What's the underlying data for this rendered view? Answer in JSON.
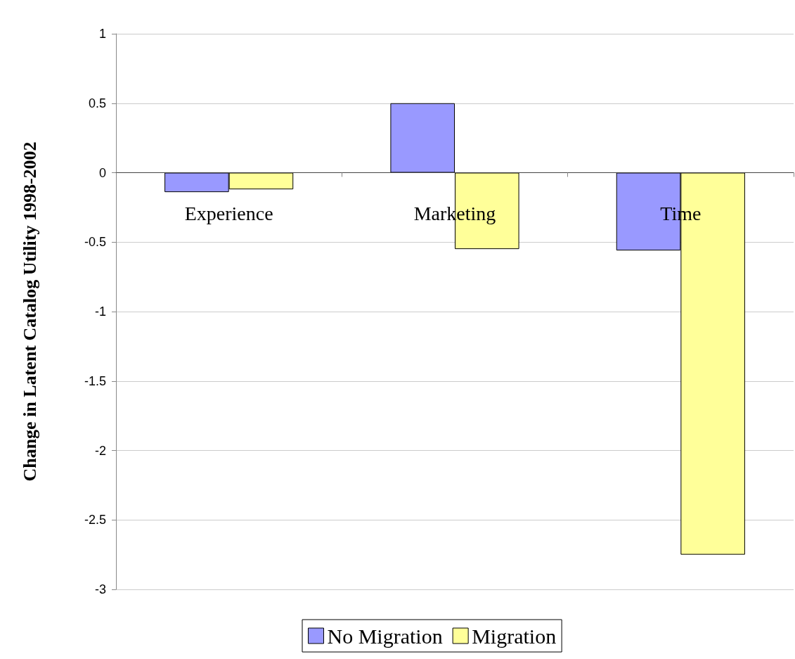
{
  "chart_data": {
    "type": "bar",
    "ylabel": "Change in Latent Catalog Utility 1998-2002",
    "categories": [
      "Experience",
      "Marketing",
      "Time"
    ],
    "series": [
      {
        "name": "No Migration",
        "color": "#9999ff",
        "values": [
          -0.14,
          0.5,
          -0.56
        ]
      },
      {
        "name": "Migration",
        "color": "#ffff99",
        "values": [
          -0.12,
          -0.55,
          -2.75
        ]
      }
    ],
    "ylim": [
      -3,
      1
    ],
    "yticks": [
      -3,
      -2.5,
      -2,
      -1.5,
      -1,
      -0.5,
      0,
      0.5,
      1
    ],
    "grid": "y",
    "legend": "bottom"
  }
}
